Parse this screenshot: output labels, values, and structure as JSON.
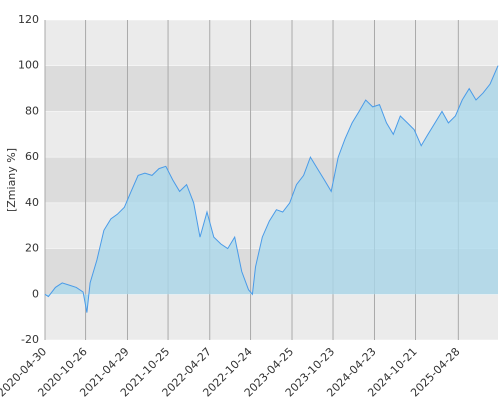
{
  "chart_data": {
    "type": "area",
    "y_label": "[Zmiany %]",
    "x": [
      "2020-04-30",
      "2020-05-15",
      "2020-06-15",
      "2020-07-15",
      "2020-08-15",
      "2020-09-15",
      "2020-10-15",
      "2020-11-01",
      "2020-11-15",
      "2020-12-15",
      "2021-01-15",
      "2021-02-15",
      "2021-03-15",
      "2021-04-15",
      "2021-05-15",
      "2021-06-15",
      "2021-07-15",
      "2021-08-15",
      "2021-09-15",
      "2021-10-15",
      "2021-11-15",
      "2021-12-15",
      "2022-01-15",
      "2022-02-15",
      "2022-03-15",
      "2022-04-15",
      "2022-05-15",
      "2022-06-15",
      "2022-07-15",
      "2022-08-15",
      "2022-09-15",
      "2022-10-15",
      "2022-11-01",
      "2022-11-15",
      "2022-12-15",
      "2023-01-15",
      "2023-02-15",
      "2023-03-15",
      "2023-04-15",
      "2023-05-15",
      "2023-06-15",
      "2023-07-15",
      "2023-08-15",
      "2023-09-15",
      "2023-10-15",
      "2023-11-15",
      "2023-12-15",
      "2024-01-15",
      "2024-02-15",
      "2024-03-15",
      "2024-04-15",
      "2024-05-15",
      "2024-06-15",
      "2024-07-15",
      "2024-08-15",
      "2024-09-15",
      "2024-10-15",
      "2024-11-15",
      "2024-12-15",
      "2025-01-15",
      "2025-02-15",
      "2025-03-15",
      "2025-04-15",
      "2025-05-15",
      "2025-06-15",
      "2025-07-15",
      "2025-08-15",
      "2025-09-15",
      "2025-10-20"
    ],
    "series": [
      {
        "name": "Zmiany",
        "color": "#4a9be8",
        "fill": "#a8d8ec",
        "values": [
          0,
          -1,
          3,
          5,
          4,
          3,
          1,
          -8,
          5,
          15,
          28,
          33,
          35,
          38,
          45,
          52,
          53,
          52,
          55,
          56,
          50,
          45,
          48,
          40,
          25,
          36,
          25,
          22,
          20,
          25,
          10,
          2,
          0,
          12,
          25,
          32,
          37,
          36,
          40,
          48,
          52,
          60,
          55,
          50,
          45,
          60,
          68,
          75,
          80,
          85,
          82,
          83,
          75,
          70,
          78,
          75,
          72,
          65,
          70,
          75,
          80,
          75,
          78,
          85,
          90,
          85,
          88,
          92,
          100
        ]
      }
    ],
    "xlim": [
      "2020-04-30",
      "2025-10-20"
    ],
    "xticks": [
      "2020-04-30",
      "2020-10-26",
      "2021-04-29",
      "2021-10-25",
      "2022-04-27",
      "2022-10-24",
      "2023-04-25",
      "2023-10-23",
      "2024-04-23",
      "2024-10-21",
      "2025-04-28"
    ],
    "ylim": [
      -20,
      120
    ],
    "yticks": [
      -20,
      0,
      20,
      40,
      60,
      80,
      100,
      120
    ],
    "grid": true
  }
}
